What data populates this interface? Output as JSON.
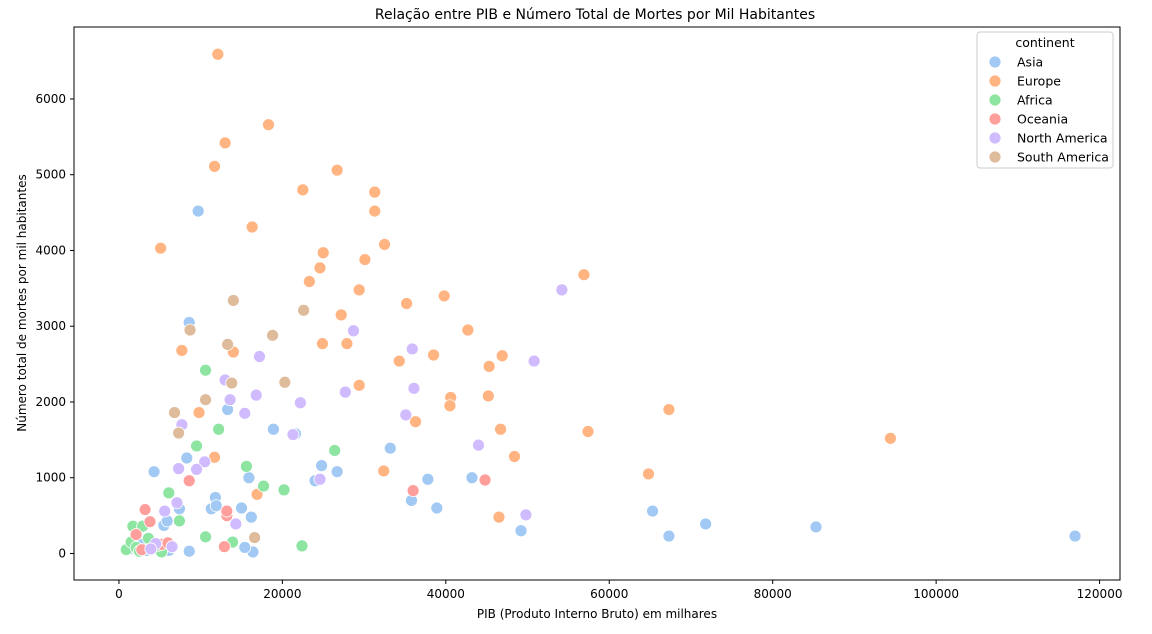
{
  "chart_data": {
    "type": "scatter",
    "title": "Relação entre PIB e Número Total de Mortes por Mil Habitantes",
    "xlabel": "PIB (Produto Interno Bruto) em milhares",
    "ylabel": "Número total de mortes por mil habitantes",
    "xlim": [
      -5500,
      122500
    ],
    "ylim": [
      -350,
      6950
    ],
    "xticks": [
      0,
      20000,
      40000,
      60000,
      80000,
      100000,
      120000
    ],
    "yticks": [
      0,
      1000,
      2000,
      3000,
      4000,
      5000,
      6000
    ],
    "xtick_labels": [
      "0",
      "20000",
      "40000",
      "60000",
      "80000",
      "100000",
      "120000"
    ],
    "ytick_labels": [
      "0",
      "1000",
      "2000",
      "3000",
      "4000",
      "5000",
      "6000"
    ],
    "grid": false,
    "legend": {
      "title": "continent",
      "placement": "top-right"
    },
    "series": [
      {
        "name": "Asia",
        "color": "#a1c9f4",
        "points": [
          [
            9700,
            4520
          ],
          [
            8600,
            3050
          ],
          [
            7400,
            590
          ],
          [
            4300,
            1080
          ],
          [
            8300,
            1260
          ],
          [
            11300,
            590
          ],
          [
            11800,
            740
          ],
          [
            11900,
            630
          ],
          [
            13300,
            1900
          ],
          [
            15000,
            600
          ],
          [
            15900,
            1000
          ],
          [
            16200,
            480
          ],
          [
            16400,
            20
          ],
          [
            15400,
            80
          ],
          [
            18900,
            1640
          ],
          [
            21600,
            1580
          ],
          [
            24000,
            960
          ],
          [
            24800,
            1160
          ],
          [
            26700,
            1080
          ],
          [
            33200,
            1390
          ],
          [
            35800,
            700
          ],
          [
            37800,
            980
          ],
          [
            38900,
            600
          ],
          [
            43200,
            1000
          ],
          [
            49200,
            300
          ],
          [
            65300,
            560
          ],
          [
            67300,
            230
          ],
          [
            71800,
            390
          ],
          [
            85300,
            350
          ],
          [
            117000,
            230
          ],
          [
            1300,
            60
          ],
          [
            2800,
            120
          ],
          [
            3400,
            40
          ],
          [
            5500,
            370
          ],
          [
            6100,
            40
          ],
          [
            8600,
            30
          ],
          [
            5900,
            430
          ]
        ]
      },
      {
        "name": "Europe",
        "color": "#ffb482",
        "points": [
          [
            12100,
            6590
          ],
          [
            18300,
            5660
          ],
          [
            13000,
            5420
          ],
          [
            11700,
            5110
          ],
          [
            26700,
            5060
          ],
          [
            22500,
            4800
          ],
          [
            31300,
            4770
          ],
          [
            31300,
            4520
          ],
          [
            16300,
            4310
          ],
          [
            5100,
            4030
          ],
          [
            32500,
            4080
          ],
          [
            25000,
            3970
          ],
          [
            30100,
            3880
          ],
          [
            24600,
            3770
          ],
          [
            23300,
            3590
          ],
          [
            29400,
            3480
          ],
          [
            39800,
            3400
          ],
          [
            35200,
            3300
          ],
          [
            27200,
            3150
          ],
          [
            42700,
            2950
          ],
          [
            7700,
            2680
          ],
          [
            14000,
            2660
          ],
          [
            24900,
            2770
          ],
          [
            27900,
            2770
          ],
          [
            34300,
            2540
          ],
          [
            38500,
            2620
          ],
          [
            46900,
            2610
          ],
          [
            45300,
            2470
          ],
          [
            56900,
            3680
          ],
          [
            29400,
            2220
          ],
          [
            9800,
            1860
          ],
          [
            40600,
            2060
          ],
          [
            45200,
            2080
          ],
          [
            36300,
            1740
          ],
          [
            46700,
            1640
          ],
          [
            40500,
            1950
          ],
          [
            11700,
            1270
          ],
          [
            48400,
            1280
          ],
          [
            67300,
            1900
          ],
          [
            57400,
            1610
          ],
          [
            94400,
            1520
          ],
          [
            16900,
            780
          ],
          [
            32400,
            1090
          ],
          [
            64800,
            1050
          ],
          [
            46500,
            480
          ]
        ]
      },
      {
        "name": "Africa",
        "color": "#8de5a1",
        "points": [
          [
            10600,
            2420
          ],
          [
            12200,
            1640
          ],
          [
            9500,
            1420
          ],
          [
            15600,
            1150
          ],
          [
            26400,
            1360
          ],
          [
            17700,
            890
          ],
          [
            20200,
            840
          ],
          [
            6100,
            800
          ],
          [
            7400,
            430
          ],
          [
            10600,
            220
          ],
          [
            13900,
            150
          ],
          [
            22400,
            100
          ],
          [
            1700,
            360
          ],
          [
            2900,
            360
          ],
          [
            3600,
            200
          ],
          [
            5200,
            20
          ],
          [
            900,
            50
          ],
          [
            1500,
            150
          ],
          [
            2100,
            80
          ],
          [
            2500,
            30
          ],
          [
            3900,
            60
          ],
          [
            4600,
            100
          ]
        ]
      },
      {
        "name": "Oceania",
        "color": "#ff9f9b",
        "points": [
          [
            3200,
            580
          ],
          [
            3800,
            420
          ],
          [
            8600,
            960
          ],
          [
            13200,
            500
          ],
          [
            13200,
            560
          ],
          [
            12900,
            90
          ],
          [
            36000,
            830
          ],
          [
            44800,
            970
          ],
          [
            2100,
            250
          ],
          [
            2800,
            50
          ],
          [
            5200,
            120
          ],
          [
            6000,
            140
          ]
        ]
      },
      {
        "name": "North America",
        "color": "#d0bbff",
        "points": [
          [
            54200,
            3480
          ],
          [
            50800,
            2540
          ],
          [
            28700,
            2940
          ],
          [
            35900,
            2700
          ],
          [
            17200,
            2600
          ],
          [
            36100,
            2180
          ],
          [
            27700,
            2130
          ],
          [
            13000,
            2290
          ],
          [
            13600,
            2030
          ],
          [
            16800,
            2090
          ],
          [
            22200,
            1990
          ],
          [
            15400,
            1850
          ],
          [
            35100,
            1830
          ],
          [
            21300,
            1570
          ],
          [
            7700,
            1700
          ],
          [
            10500,
            1210
          ],
          [
            9500,
            1110
          ],
          [
            7300,
            1120
          ],
          [
            24600,
            980
          ],
          [
            44000,
            1430
          ],
          [
            49800,
            510
          ],
          [
            7100,
            670
          ],
          [
            14300,
            390
          ],
          [
            5600,
            560
          ],
          [
            4500,
            130
          ],
          [
            3900,
            60
          ],
          [
            6500,
            90
          ]
        ]
      },
      {
        "name": "South America",
        "color": "#debb9b",
        "points": [
          [
            14000,
            3340
          ],
          [
            8700,
            2950
          ],
          [
            22600,
            3210
          ],
          [
            18800,
            2880
          ],
          [
            13300,
            2760
          ],
          [
            13800,
            2250
          ],
          [
            20300,
            2260
          ],
          [
            10600,
            2030
          ],
          [
            6800,
            1860
          ],
          [
            7300,
            1590
          ],
          [
            16600,
            210
          ]
        ]
      }
    ]
  }
}
